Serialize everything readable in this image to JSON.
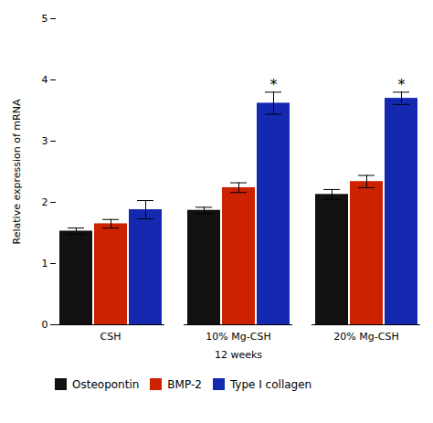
{
  "chart_data": {
    "type": "bar",
    "categories": [
      "CSH",
      "10% Mg-CSH",
      "20% Mg-CSH"
    ],
    "series": [
      {
        "name": "Osteopontin",
        "color": "#111111",
        "values": [
          1.53,
          1.87,
          2.13
        ],
        "errors": [
          0.05,
          0.05,
          0.08
        ]
      },
      {
        "name": "BMP-2",
        "color": "#cc2200",
        "values": [
          1.65,
          2.24,
          2.34
        ],
        "errors": [
          0.07,
          0.08,
          0.1
        ]
      },
      {
        "name": "Type I collagen",
        "color": "#1428b0",
        "values": [
          1.88,
          3.62,
          3.7
        ],
        "errors": [
          0.15,
          0.18,
          0.1
        ],
        "significance": [
          null,
          "*",
          "*"
        ]
      }
    ],
    "xlabel": "12 weeks",
    "ylabel": "Relative expression of mRNA",
    "ylim": [
      0,
      5
    ],
    "yticks": [
      0,
      1,
      2,
      3,
      4,
      5
    ],
    "grid": false,
    "legend": "bottom"
  }
}
